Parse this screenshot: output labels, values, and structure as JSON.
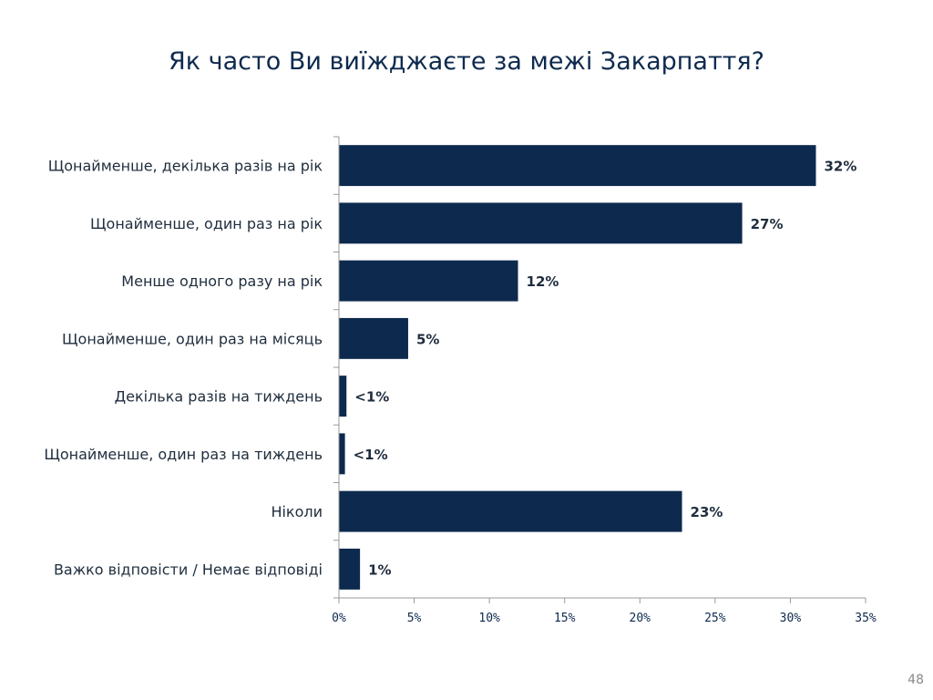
{
  "chart_data": {
    "type": "bar",
    "orientation": "horizontal",
    "title": "Як часто Ви виїжджаєте за межі Закарпаття?",
    "categories": [
      "Щонайменше, декілька разів на рік",
      "Щонайменше, один раз на рік",
      "Менше одного разу на рік",
      "Щонайменше, один раз на місяць",
      "Декілька разів на тиждень",
      "Щонайменше, один раз на тиждень",
      "Ніколи",
      "Важко відповісти / Немає відповіді"
    ],
    "values": [
      31.7,
      26.8,
      11.9,
      4.6,
      0.5,
      0.4,
      22.8,
      1.4
    ],
    "data_labels": [
      "32%",
      "27%",
      "12%",
      "5%",
      "<1%",
      "<1%",
      "23%",
      "1%"
    ],
    "xlim": [
      0,
      35
    ],
    "x_ticks": [
      "0%",
      "5%",
      "10%",
      "15%",
      "20%",
      "25%",
      "30%",
      "35%"
    ],
    "bar_color": "#0d2a4e",
    "grid": false,
    "legend": "none"
  },
  "page_number": "48"
}
